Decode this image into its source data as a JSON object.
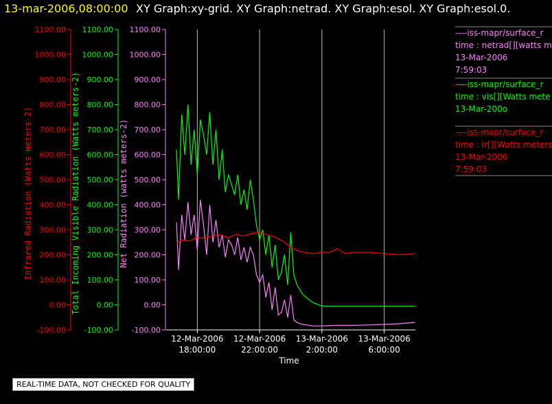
{
  "header": {
    "date": "13-mar-2006,08:00:00",
    "graphs": "XY Graph:xy-grid.  XY Graph:netrad.  XY Graph:esol.  XY Graph:esol.0."
  },
  "colors": {
    "infrared": "#ff0000",
    "visible": "#00ff00",
    "net": "#ff80ff",
    "grid": "#ffffff"
  },
  "legend": [
    {
      "color": "#ff80ff",
      "lines": [
        "----iss-mapr/surface_r",
        "time : netrad[][watts m",
        "13-Mar-2006",
        "7:59:03"
      ]
    },
    {
      "color": "#00ff00",
      "lines": [
        "----iss-mapr/surface_r",
        "time : vis[][Watts mete",
        "13-Mar-200o"
      ]
    },
    {
      "color": "#ff0000",
      "lines": [
        "----iss-mapr/surface_r",
        "time : ir[][Watts meters",
        "13-Mar-2006",
        "7:59:03"
      ]
    }
  ],
  "notice": "REAL-TIME DATA, NOT CHECKED FOR QUALITY",
  "chart_data": {
    "type": "line",
    "title": "",
    "xlabel": "Time",
    "xlim": [
      "12-Mar-2006 16:00",
      "13-Mar-2006 08:00"
    ],
    "x_ticks": [
      {
        "date": "12-Mar-2006",
        "time": "18:00:00"
      },
      {
        "date": "12-Mar-2006",
        "time": "22:00:00"
      },
      {
        "date": "13-Mar-2006",
        "time": "2:00:00"
      },
      {
        "date": "13-Mar-2006",
        "time": "6:00:00"
      }
    ],
    "grid": "vertical lines at x ticks",
    "y_axes": [
      {
        "label": "Infrared Radiation (Watts meters-2)",
        "color": "#ff0000",
        "ylim": [
          -100,
          1100
        ],
        "ticks": [
          "1100.00",
          "1000.00",
          "900.00",
          "800.00",
          "700.00",
          "600.00",
          "500.00",
          "400.00",
          "300.00",
          "200.00",
          "100.00",
          "0.00",
          "-100.00"
        ]
      },
      {
        "label": "Total Incoming Visible Radiation (Watts meters-2)",
        "color": "#00ff00",
        "ylim": [
          -100,
          1100
        ],
        "ticks": [
          "1100.00",
          "1000.00",
          "900.00",
          "800.00",
          "700.00",
          "600.00",
          "500.00",
          "400.00",
          "300.00",
          "200.00",
          "100.00",
          "0.00",
          "-100.00"
        ]
      },
      {
        "label": "Net Radiation (watts meters-2)",
        "color": "#ff80ff",
        "ylim": [
          -100,
          1100
        ],
        "ticks": [
          "1100.00",
          "1000.00",
          "900.00",
          "800.00",
          "700.00",
          "600.00",
          "500.00",
          "400.00",
          "300.00",
          "200.00",
          "100.00",
          "0.00",
          "-100.00"
        ]
      }
    ],
    "series": [
      {
        "key": "visible",
        "color": "#00ff00",
        "x": [
          "12-Mar-2006 16:40",
          "12-Mar-2006 16:48",
          "12-Mar-2006 17:00",
          "12-Mar-2006 17:12",
          "12-Mar-2006 17:24",
          "12-Mar-2006 17:36",
          "12-Mar-2006 17:48",
          "12-Mar-2006 18:00",
          "12-Mar-2006 18:12",
          "12-Mar-2006 18:24",
          "12-Mar-2006 18:36",
          "12-Mar-2006 18:48",
          "12-Mar-2006 19:00",
          "12-Mar-2006 19:12",
          "12-Mar-2006 19:24",
          "12-Mar-2006 19:36",
          "12-Mar-2006 19:48",
          "12-Mar-2006 20:00",
          "12-Mar-2006 20:12",
          "12-Mar-2006 20:24",
          "12-Mar-2006 20:36",
          "12-Mar-2006 20:48",
          "12-Mar-2006 21:00",
          "12-Mar-2006 21:12",
          "12-Mar-2006 21:24",
          "12-Mar-2006 21:36",
          "12-Mar-2006 21:48",
          "12-Mar-2006 22:00",
          "12-Mar-2006 22:12",
          "12-Mar-2006 22:24",
          "12-Mar-2006 22:36",
          "12-Mar-2006 22:48",
          "12-Mar-2006 23:00",
          "12-Mar-2006 23:12",
          "12-Mar-2006 23:24",
          "12-Mar-2006 23:36",
          "12-Mar-2006 23:48",
          "13-Mar-2006 00:00",
          "13-Mar-2006 00:12",
          "13-Mar-2006 00:24",
          "13-Mar-2006 00:36",
          "13-Mar-2006 00:48",
          "13-Mar-2006 01:00",
          "13-Mar-2006 01:12",
          "13-Mar-2006 01:24",
          "13-Mar-2006 01:36",
          "13-Mar-2006 02:00",
          "13-Mar-2006 03:00",
          "13-Mar-2006 04:00",
          "13-Mar-2006 05:00",
          "13-Mar-2006 06:00",
          "13-Mar-2006 07:00",
          "13-Mar-2006 07:59"
        ],
        "y": [
          620,
          420,
          760,
          600,
          800,
          560,
          700,
          520,
          740,
          680,
          600,
          770,
          560,
          700,
          500,
          620,
          450,
          520,
          480,
          440,
          520,
          400,
          460,
          380,
          500,
          420,
          320,
          260,
          300,
          200,
          280,
          150,
          240,
          100,
          130,
          200,
          80,
          290,
          120,
          80,
          60,
          40,
          30,
          20,
          10,
          5,
          -5,
          -5,
          -5,
          -5,
          -5,
          -5,
          -5
        ]
      },
      {
        "key": "net",
        "color": "#ff80ff",
        "x": [
          "12-Mar-2006 16:40",
          "12-Mar-2006 16:48",
          "12-Mar-2006 17:00",
          "12-Mar-2006 17:12",
          "12-Mar-2006 17:24",
          "12-Mar-2006 17:36",
          "12-Mar-2006 17:48",
          "12-Mar-2006 18:00",
          "12-Mar-2006 18:12",
          "12-Mar-2006 18:24",
          "12-Mar-2006 18:36",
          "12-Mar-2006 18:48",
          "12-Mar-2006 19:00",
          "12-Mar-2006 19:12",
          "12-Mar-2006 19:24",
          "12-Mar-2006 19:36",
          "12-Mar-2006 19:48",
          "12-Mar-2006 20:00",
          "12-Mar-2006 20:12",
          "12-Mar-2006 20:24",
          "12-Mar-2006 20:36",
          "12-Mar-2006 20:48",
          "12-Mar-2006 21:00",
          "12-Mar-2006 21:12",
          "12-Mar-2006 21:24",
          "12-Mar-2006 21:36",
          "12-Mar-2006 21:48",
          "12-Mar-2006 22:00",
          "12-Mar-2006 22:12",
          "12-Mar-2006 22:24",
          "12-Mar-2006 22:36",
          "12-Mar-2006 22:48",
          "12-Mar-2006 23:00",
          "12-Mar-2006 23:12",
          "12-Mar-2006 23:24",
          "12-Mar-2006 23:36",
          "12-Mar-2006 23:48",
          "13-Mar-2006 00:00",
          "13-Mar-2006 00:12",
          "13-Mar-2006 00:24",
          "13-Mar-2006 00:36",
          "13-Mar-2006 00:48",
          "13-Mar-2006 01:00",
          "13-Mar-2006 01:12",
          "13-Mar-2006 01:24",
          "13-Mar-2006 01:36",
          "13-Mar-2006 02:00",
          "13-Mar-2006 03:00",
          "13-Mar-2006 04:00",
          "13-Mar-2006 05:00",
          "13-Mar-2006 06:00",
          "13-Mar-2006 07:00",
          "13-Mar-2006 07:59"
        ],
        "y": [
          330,
          140,
          360,
          260,
          410,
          280,
          360,
          220,
          420,
          320,
          200,
          400,
          250,
          340,
          230,
          280,
          190,
          260,
          240,
          200,
          270,
          180,
          230,
          170,
          230,
          200,
          120,
          90,
          120,
          30,
          90,
          -20,
          70,
          -40,
          -30,
          20,
          -50,
          40,
          -60,
          -70,
          -75,
          -78,
          -80,
          -82,
          -84,
          -84,
          -84,
          -82,
          -82,
          -80,
          -78,
          -75,
          -70
        ]
      },
      {
        "key": "infrared",
        "color": "#ff0000",
        "x": [
          "12-Mar-2006 16:40",
          "12-Mar-2006 17:00",
          "12-Mar-2006 17:30",
          "12-Mar-2006 18:00",
          "12-Mar-2006 18:30",
          "12-Mar-2006 19:00",
          "12-Mar-2006 19:30",
          "12-Mar-2006 20:00",
          "12-Mar-2006 20:30",
          "12-Mar-2006 21:00",
          "12-Mar-2006 21:30",
          "12-Mar-2006 22:00",
          "12-Mar-2006 22:30",
          "12-Mar-2006 23:00",
          "12-Mar-2006 23:30",
          "13-Mar-2006 00:00",
          "13-Mar-2006 00:30",
          "13-Mar-2006 01:00",
          "13-Mar-2006 01:30",
          "13-Mar-2006 02:00",
          "13-Mar-2006 02:30",
          "13-Mar-2006 03:00",
          "13-Mar-2006 03:30",
          "13-Mar-2006 04:00",
          "13-Mar-2006 05:00",
          "13-Mar-2006 06:00",
          "13-Mar-2006 07:00",
          "13-Mar-2006 07:59"
        ],
        "y": [
          245,
          260,
          255,
          270,
          265,
          275,
          280,
          268,
          282,
          275,
          285,
          290,
          280,
          270,
          255,
          230,
          215,
          208,
          205,
          210,
          210,
          225,
          205,
          210,
          210,
          205,
          200,
          205
        ]
      }
    ]
  }
}
